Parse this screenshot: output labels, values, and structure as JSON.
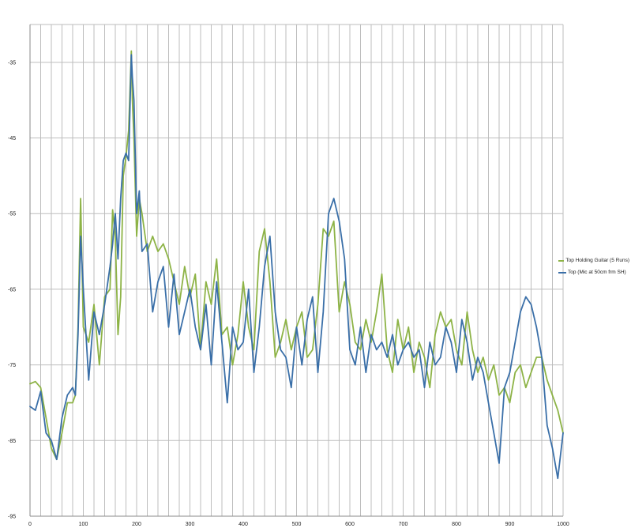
{
  "chart_data": {
    "type": "line",
    "title": "",
    "xlabel": "",
    "ylabel": "",
    "xlim": [
      0,
      1000
    ],
    "ylim": [
      -95,
      -30
    ],
    "x_ticks": [
      0,
      100,
      200,
      300,
      400,
      500,
      600,
      700,
      800,
      900,
      1000
    ],
    "x_tick_labels": [
      "0",
      "100",
      "200",
      "300",
      "400",
      "500",
      "600",
      "700",
      "800",
      "900",
      "1000"
    ],
    "y_ticks": [
      -35,
      -45,
      -55,
      -65,
      -75,
      -85,
      -95
    ],
    "y_tick_labels": [
      "-35",
      "-45",
      "-55",
      "-65",
      "-75",
      "-85",
      "-95"
    ],
    "x_minor_step": 20,
    "grid": true,
    "legend_position": "right",
    "colors": {
      "green": "#8db346",
      "blue": "#3a6fa8",
      "grid": "#bdbdbd"
    },
    "series": [
      {
        "name": "Top Holding Guitar (5 Runs)",
        "color": "#8db346",
        "x": [
          0,
          10,
          20,
          30,
          40,
          50,
          60,
          70,
          80,
          85,
          90,
          95,
          100,
          110,
          120,
          130,
          140,
          150,
          155,
          160,
          165,
          170,
          175,
          180,
          185,
          190,
          192,
          195,
          200,
          205,
          210,
          220,
          230,
          240,
          250,
          260,
          270,
          280,
          290,
          300,
          310,
          320,
          330,
          340,
          350,
          360,
          370,
          380,
          390,
          400,
          410,
          420,
          430,
          440,
          450,
          460,
          470,
          480,
          490,
          500,
          510,
          520,
          530,
          540,
          550,
          560,
          570,
          580,
          590,
          600,
          610,
          620,
          630,
          640,
          650,
          660,
          670,
          680,
          690,
          700,
          710,
          720,
          730,
          740,
          750,
          760,
          770,
          780,
          790,
          800,
          810,
          820,
          830,
          840,
          850,
          860,
          870,
          880,
          890,
          900,
          910,
          920,
          930,
          940,
          950,
          960,
          970,
          980,
          990,
          1000
        ],
        "y": [
          -77.5,
          -77.2,
          -78,
          -82,
          -86,
          -87.5,
          -84,
          -80,
          -80,
          -79,
          -70,
          -53,
          -70,
          -72,
          -67,
          -75,
          -66,
          -65,
          -54.5,
          -58,
          -71,
          -66,
          -50,
          -47.5,
          -44,
          -33.5,
          -40,
          -45,
          -58,
          -53,
          -55,
          -60,
          -58,
          -60,
          -59,
          -61,
          -64,
          -67,
          -62,
          -66,
          -63,
          -73,
          -64,
          -67,
          -61,
          -71,
          -70,
          -75,
          -71,
          -64,
          -70,
          -73,
          -60,
          -57,
          -64,
          -74,
          -72,
          -69,
          -73,
          -70,
          -68,
          -74,
          -73,
          -67,
          -57,
          -58,
          -56,
          -68,
          -64,
          -67,
          -72,
          -73,
          -69,
          -72,
          -68,
          -63,
          -73,
          -76,
          -69,
          -73,
          -70,
          -76,
          -72,
          -74,
          -78,
          -71,
          -68,
          -70,
          -69,
          -73,
          -75,
          -68,
          -73,
          -76,
          -74,
          -77,
          -75,
          -79,
          -78,
          -80,
          -76,
          -75,
          -78,
          -76,
          -74,
          -74,
          -77,
          -79,
          -81,
          -84
        ]
      },
      {
        "name": "Top (Mic at 50cm frm SH)",
        "color": "#3a6fa8",
        "x": [
          0,
          10,
          20,
          30,
          40,
          50,
          60,
          70,
          80,
          85,
          90,
          95,
          100,
          110,
          120,
          130,
          140,
          150,
          155,
          160,
          165,
          170,
          175,
          180,
          185,
          190,
          192,
          195,
          200,
          205,
          210,
          220,
          230,
          240,
          250,
          260,
          270,
          280,
          290,
          300,
          310,
          320,
          330,
          340,
          350,
          360,
          370,
          380,
          390,
          400,
          410,
          420,
          430,
          440,
          450,
          460,
          470,
          480,
          490,
          500,
          510,
          520,
          530,
          540,
          550,
          560,
          570,
          580,
          590,
          600,
          610,
          620,
          630,
          640,
          650,
          660,
          670,
          680,
          690,
          700,
          710,
          720,
          730,
          740,
          750,
          760,
          770,
          780,
          790,
          800,
          810,
          820,
          830,
          840,
          850,
          860,
          870,
          880,
          890,
          900,
          910,
          920,
          930,
          940,
          950,
          960,
          970,
          980,
          990,
          1000
        ],
        "y": [
          -80.5,
          -81,
          -78.5,
          -84,
          -85,
          -87.5,
          -82,
          -79,
          -78,
          -79,
          -71,
          -58,
          -65,
          -77,
          -68,
          -71,
          -67,
          -62,
          -59,
          -55,
          -61,
          -53,
          -48,
          -47,
          -48,
          -34,
          -37,
          -40,
          -55,
          -52,
          -60,
          -59,
          -68,
          -64,
          -62,
          -70,
          -63,
          -71,
          -68,
          -65,
          -70,
          -73,
          -67,
          -75,
          -64,
          -72,
          -80,
          -70,
          -73,
          -72,
          -65,
          -76,
          -70,
          -62,
          -58,
          -68,
          -73,
          -74,
          -78,
          -70,
          -75,
          -69,
          -66,
          -76,
          -68,
          -55,
          -53,
          -56,
          -61,
          -73,
          -75,
          -70,
          -76,
          -71,
          -73,
          -72,
          -74,
          -71,
          -75,
          -73,
          -72,
          -74,
          -73,
          -78,
          -72,
          -75,
          -74,
          -70,
          -72,
          -76,
          -69,
          -72,
          -77,
          -74,
          -76,
          -80,
          -84,
          -88,
          -78,
          -76,
          -72,
          -68,
          -66,
          -67,
          -70,
          -74,
          -83,
          -86,
          -90,
          -84
        ]
      }
    ]
  }
}
